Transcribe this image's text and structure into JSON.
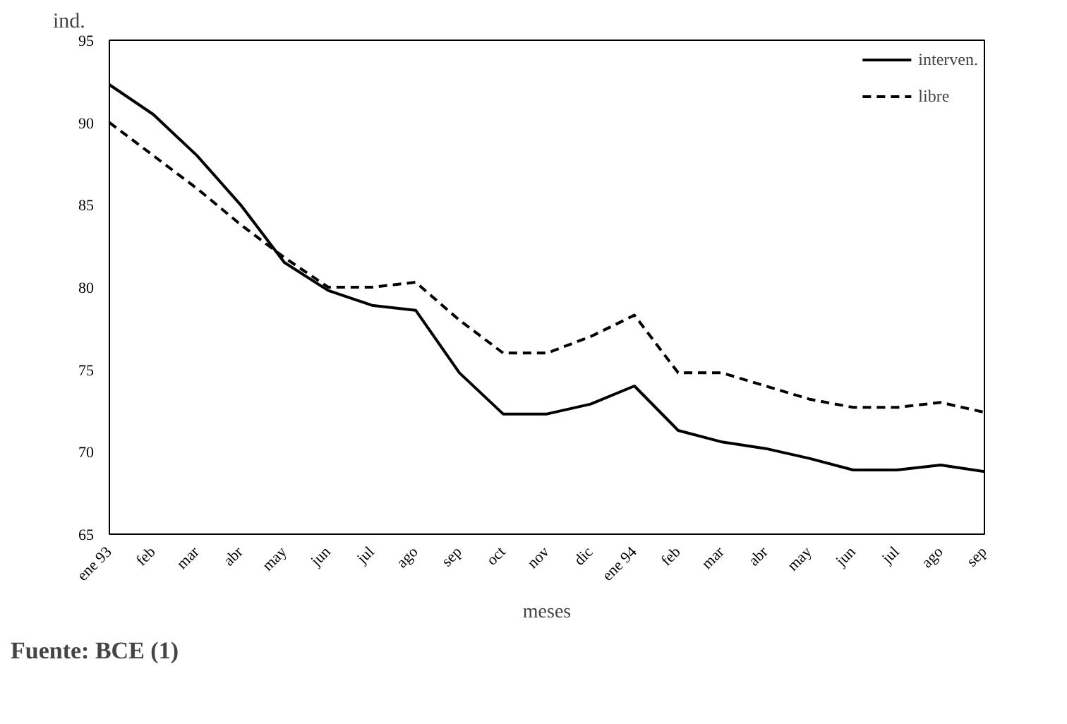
{
  "chart_data": {
    "type": "line",
    "ylabel": "ind.",
    "xlabel": "meses",
    "categories": [
      "ene 93",
      "feb",
      "mar",
      "abr",
      "may",
      "jun",
      "jul",
      "ago",
      "sep",
      "oct",
      "nov",
      "dic",
      "ene 94",
      "feb",
      "mar",
      "abr",
      "may",
      "jun",
      "jul",
      "ago",
      "sep"
    ],
    "series": [
      {
        "name": "interven.",
        "color": "#000000",
        "line_style": "solid",
        "values": [
          92.3,
          90.5,
          88,
          85,
          81.5,
          79.8,
          78.9,
          78.6,
          74.8,
          72.3,
          72.3,
          72.9,
          74.0,
          71.3,
          70.6,
          70.2,
          69.6,
          68.9,
          68.9,
          69.2,
          68.8
        ]
      },
      {
        "name": "libre",
        "color": "#000000",
        "line_style": "dashed",
        "values": [
          90,
          88,
          86,
          83.8,
          81.8,
          80,
          80,
          80.3,
          78,
          76,
          76,
          77,
          78.3,
          74.8,
          74.8,
          74,
          73.2,
          72.7,
          72.7,
          73,
          72.4
        ]
      }
    ],
    "ylim": [
      65,
      95
    ],
    "yticks": [
      65,
      70,
      75,
      80,
      85,
      90,
      95
    ],
    "grid": false,
    "legend": "top right",
    "annotations": [
      "Fuente: BCE (1)"
    ]
  }
}
